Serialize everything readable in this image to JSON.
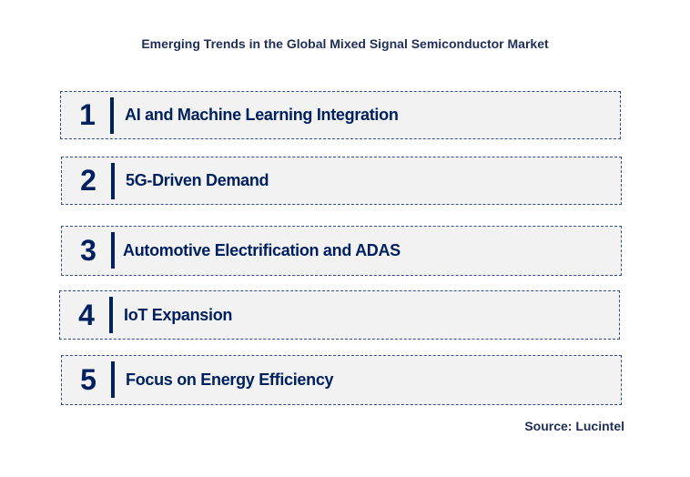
{
  "title": "Emerging Trends in the Global Mixed Signal Semiconductor Market",
  "items": [
    {
      "number": "1",
      "label": "AI and Machine Learning Integration"
    },
    {
      "number": "2",
      "label": "5G-Driven Demand"
    },
    {
      "number": "3",
      "label": "Automotive Electrification and ADAS"
    },
    {
      "number": "4",
      "label": "IoT Expansion"
    },
    {
      "number": "5",
      "label": "Focus on Energy Efficiency"
    }
  ],
  "source": "Source: Lucintel",
  "colors": {
    "text": "#002060",
    "box_bg": "#f2f2f2"
  }
}
